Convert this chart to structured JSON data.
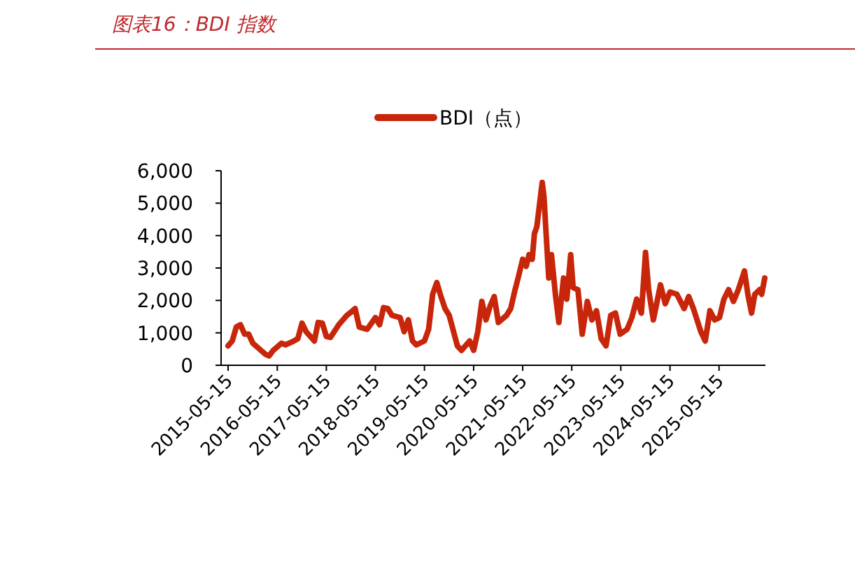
{
  "chart_data": {
    "type": "line",
    "title": "图表16：BDI 指数",
    "legend": "top",
    "xlim": [
      "2015-03-24",
      "2026-04-25"
    ],
    "ylim": [
      0,
      6000
    ],
    "yticks": [
      0,
      {
        "value": 1000,
        "label": "1,000"
      },
      {
        "value": 2000,
        "label": "2,000"
      },
      {
        "value": 3000,
        "label": "3,000"
      },
      {
        "value": 4000,
        "label": "4,000"
      },
      {
        "value": 5000,
        "label": "5,000"
      },
      {
        "value": 6000,
        "label": "6,000"
      }
    ],
    "xticks": [
      "2015-05-15",
      "2016-05-15",
      "2017-05-15",
      "2018-05-15",
      "2019-05-15",
      "2020-05-15",
      "2021-05-15",
      "2022-05-15",
      "2023-05-15",
      "2024-05-15",
      "2025-05-15"
    ],
    "x": [
      "2015-05-15",
      "2015-06-15",
      "2015-07-15",
      "2015-08-15",
      "2015-09-15",
      "2015-10-15",
      "2015-11-15",
      "2016-01-15",
      "2016-02-15",
      "2016-03-15",
      "2016-04-15",
      "2016-06-15",
      "2016-07-15",
      "2016-09-15",
      "2016-10-15",
      "2016-11-15",
      "2016-12-15",
      "2017-02-15",
      "2017-03-15",
      "2017-04-15",
      "2017-05-15",
      "2017-06-15",
      "2017-08-15",
      "2017-10-15",
      "2017-11-15",
      "2017-12-15",
      "2018-01-15",
      "2018-03-15",
      "2018-05-15",
      "2018-06-15",
      "2018-07-15",
      "2018-08-15",
      "2018-09-15",
      "2018-11-15",
      "2018-12-15",
      "2019-01-15",
      "2019-02-15",
      "2019-03-15",
      "2019-05-15",
      "2019-06-15",
      "2019-07-15",
      "2019-08-15",
      "2019-09-15",
      "2019-10-15",
      "2019-11-15",
      "2020-01-15",
      "2020-02-15",
      "2020-04-15",
      "2020-05-15",
      "2020-06-15",
      "2020-07-15",
      "2020-08-15",
      "2020-09-15",
      "2020-10-15",
      "2020-11-15",
      "2021-01-15",
      "2021-02-15",
      "2021-03-15",
      "2021-04-15",
      "2021-05-15",
      "2021-06-10",
      "2021-07-01",
      "2021-07-25",
      "2021-08-10",
      "2021-08-28",
      "2021-10-07",
      "2021-10-20",
      "2021-11-05",
      "2021-11-25",
      "2021-12-15",
      "2022-01-15",
      "2022-02-08",
      "2022-03-15",
      "2022-04-08",
      "2022-05-07",
      "2022-05-25",
      "2022-06-30",
      "2022-08-01",
      "2022-09-08",
      "2022-10-12",
      "2022-11-15",
      "2022-12-20",
      "2023-01-25",
      "2023-03-01",
      "2023-04-05",
      "2023-05-10",
      "2023-07-01",
      "2023-08-05",
      "2023-09-10",
      "2023-10-15",
      "2023-11-15",
      "2023-12-08",
      "2024-01-12",
      "2024-03-05",
      "2024-04-10",
      "2024-05-15",
      "2024-07-05",
      "2024-08-28",
      "2024-10-01",
      "2024-11-05",
      "2024-12-30",
      "2025-02-01",
      "2025-03-08",
      "2025-04-12",
      "2025-05-18",
      "2025-06-20",
      "2025-07-25",
      "2025-08-30",
      "2025-10-05",
      "2025-11-20",
      "2025-12-15",
      "2026-01-12",
      "2026-02-05",
      "2026-03-12",
      "2026-03-28",
      "2026-04-20"
    ],
    "series": [
      {
        "name": "BDI（点）",
        "color": "#c8260a",
        "values": [
          600,
          750,
          1180,
          1250,
          960,
          960,
          680,
          460,
          345,
          290,
          460,
          680,
          630,
          750,
          820,
          1300,
          1040,
          750,
          1320,
          1300,
          890,
          860,
          1250,
          1540,
          1640,
          1750,
          1180,
          1110,
          1470,
          1250,
          1780,
          1750,
          1540,
          1470,
          1040,
          1400,
          750,
          630,
          750,
          1110,
          2190,
          2550,
          2120,
          1750,
          1540,
          600,
          460,
          750,
          460,
          1040,
          1970,
          1400,
          1830,
          2120,
          1320,
          1540,
          1750,
          2260,
          2760,
          3270,
          3050,
          3410,
          3270,
          4060,
          4270,
          5640,
          5210,
          4060,
          2690,
          3410,
          2120,
          1320,
          2690,
          2040,
          3410,
          2400,
          2330,
          960,
          1970,
          1400,
          1680,
          820,
          600,
          1540,
          1610,
          960,
          1110,
          1470,
          2040,
          1610,
          3480,
          2330,
          1400,
          2480,
          1900,
          2260,
          2190,
          1750,
          2120,
          1750,
          1040,
          750,
          1680,
          1400,
          1470,
          2040,
          2330,
          1970,
          2330,
          2910,
          2190,
          1610,
          2190,
          2330,
          2190,
          2690
        ]
      }
    ]
  }
}
